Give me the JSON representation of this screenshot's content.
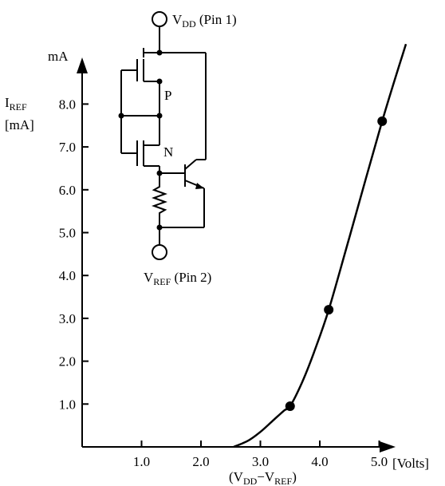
{
  "figure": {
    "y_unit_top": "mA",
    "y_label_main": "I",
    "y_label_sub": "REF",
    "y_label_unit": "[mA]",
    "x_unit": "[Volts]",
    "x_label_open": "(V",
    "x_label_sub1": "DD",
    "x_label_mid": "−V",
    "x_label_sub2": "REF",
    "x_label_close": ")"
  },
  "circuit": {
    "vdd_main": "V",
    "vdd_sub": "DD",
    "vdd_pin": " (Pin 1)",
    "vref_main": "V",
    "vref_sub": "REF",
    "vref_pin": " (Pin 2)",
    "p_label": "P",
    "n_label": "N"
  },
  "chart_data": {
    "type": "line",
    "x_ticks": [
      "1.0",
      "2.0",
      "3.0",
      "4.0",
      "5.0"
    ],
    "y_ticks": [
      "1.0",
      "2.0",
      "3.0",
      "4.0",
      "5.0",
      "6.0",
      "7.0",
      "8.0"
    ],
    "xlim": [
      0,
      5.5
    ],
    "ylim": [
      0,
      9.3
    ],
    "grid": false,
    "curve": {
      "x": [
        2.55,
        2.8,
        3.0,
        3.2,
        3.4,
        3.5,
        3.7,
        3.9,
        4.15,
        4.5,
        5.05,
        5.45
      ],
      "y": [
        0,
        0.15,
        0.35,
        0.6,
        0.85,
        0.95,
        1.5,
        2.2,
        3.2,
        4.9,
        7.6,
        9.4
      ]
    },
    "markers": {
      "x": [
        3.5,
        4.15,
        5.05
      ],
      "y": [
        0.95,
        3.2,
        7.6
      ]
    }
  }
}
